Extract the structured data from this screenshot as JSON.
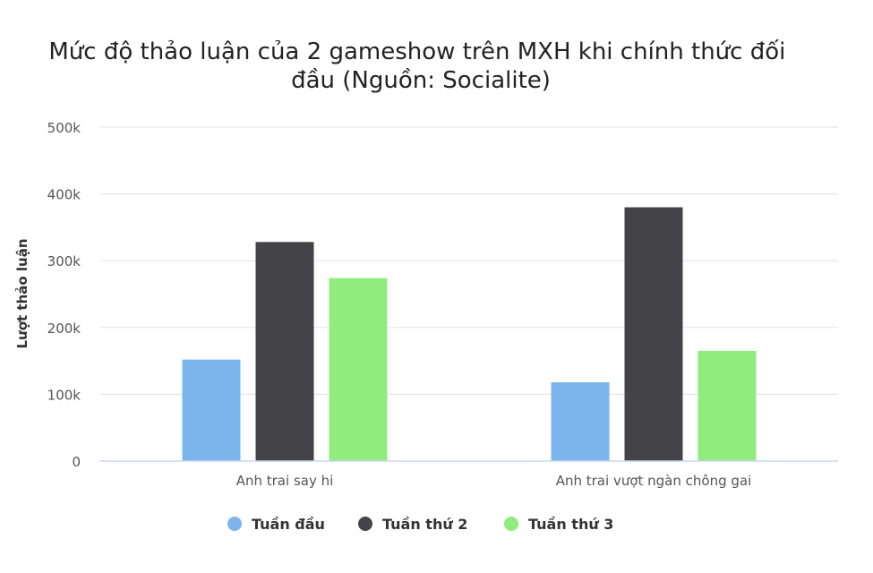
{
  "chart_data": {
    "type": "bar",
    "title": "Mức độ thảo luận của 2 gameshow trên MXH khi chính thức đối đầu (Nguồn: Socialite)",
    "title_lines": [
      "Mức độ thảo luận của 2 gameshow trên MXH khi chính thức đối",
      "đầu (Nguồn: Socialite)"
    ],
    "xlabel": "",
    "ylabel": "Lượt thảo luận",
    "categories": [
      "Anh trai say hi",
      "Anh trai vượt ngàn chông gai"
    ],
    "series": [
      {
        "name": "Tuần đầu",
        "color": "#7cb5ec",
        "values": [
          152000,
          118000
        ]
      },
      {
        "name": "Tuần thứ 2",
        "color": "#434348",
        "values": [
          328000,
          380000
        ]
      },
      {
        "name": "Tuần thứ 3",
        "color": "#90ed7d",
        "values": [
          274000,
          165000
        ]
      }
    ],
    "ylim": [
      0,
      500000
    ],
    "yticks": [
      0,
      100000,
      200000,
      300000,
      400000,
      500000
    ],
    "ytick_labels": [
      "0",
      "100k",
      "200k",
      "300k",
      "400k",
      "500k"
    ],
    "grid": true,
    "legend_position": "bottom-center"
  }
}
